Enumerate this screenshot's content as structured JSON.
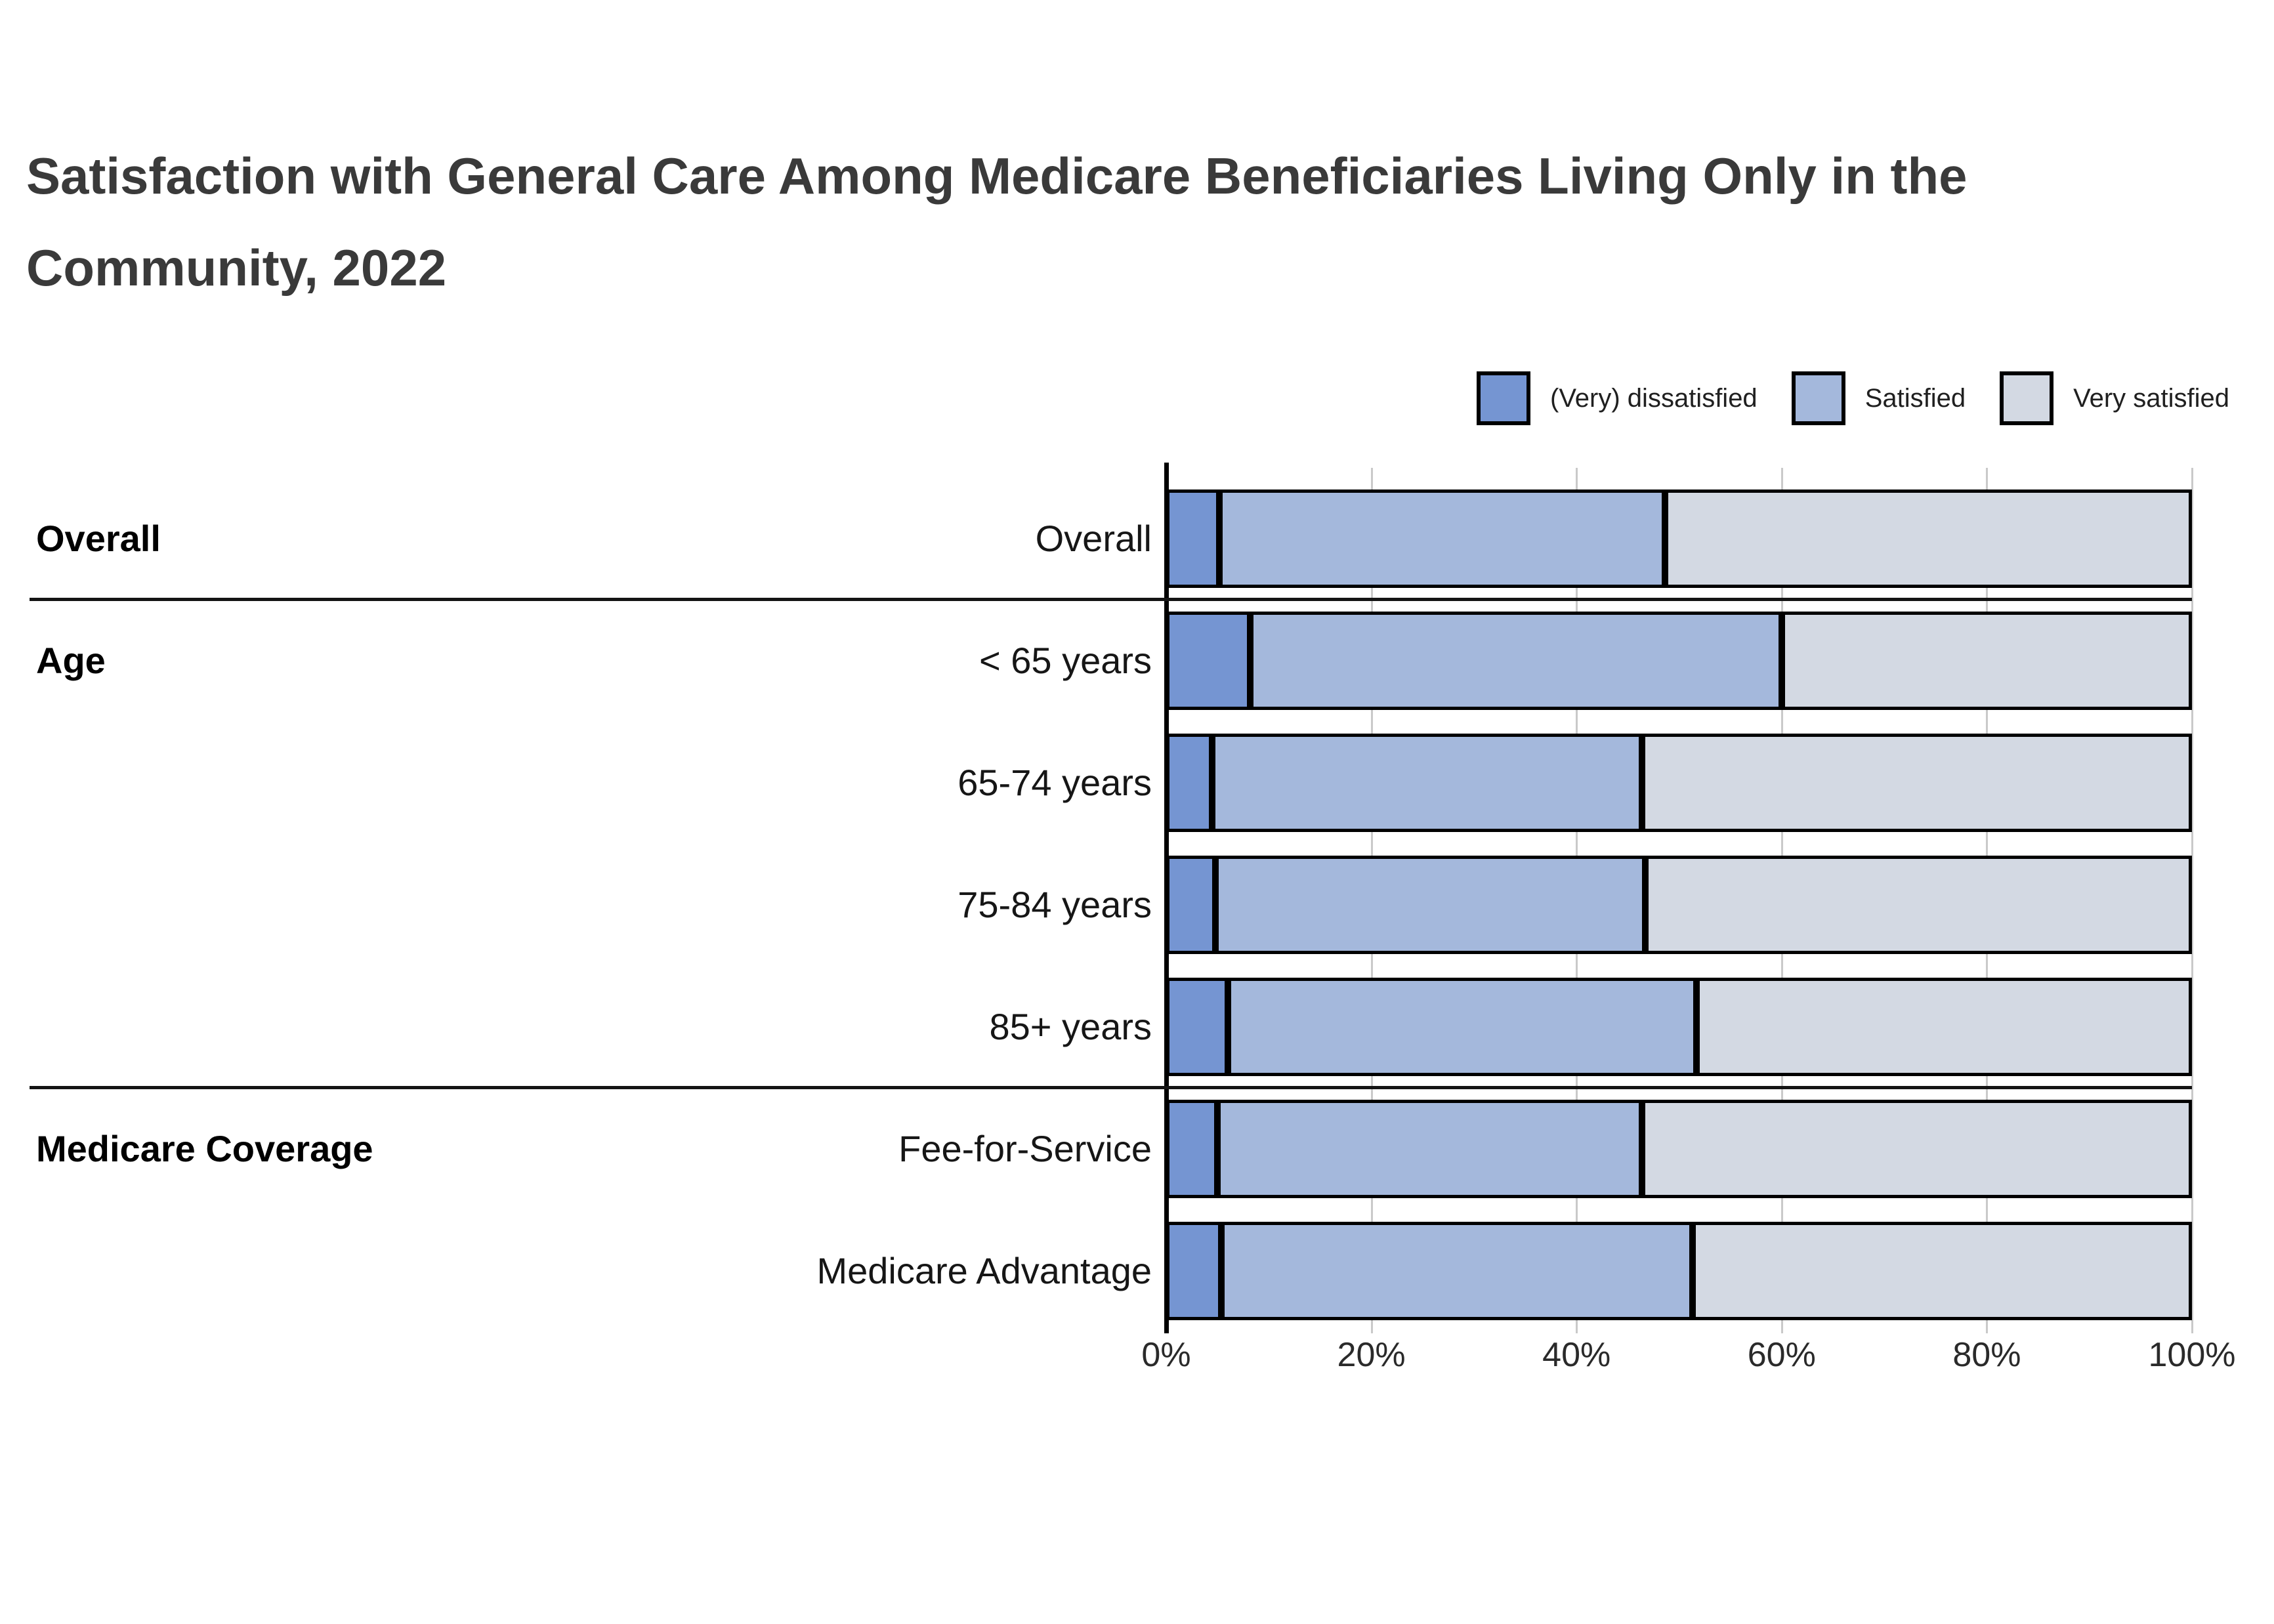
{
  "title": "Satisfaction with General Care Among Medicare Beneficiaries Living Only in the Community, 2022",
  "chart_data": {
    "type": "bar",
    "orientation": "horizontal",
    "stacked": true,
    "title": "Satisfaction with General Care Among Medicare Beneficiaries Living Only in the Community, 2022",
    "series_names": [
      "(Very) dissatisfied",
      "Satisfied",
      "Very satisfied"
    ],
    "colors": [
      "#7595d2",
      "#a4b8dc",
      "#d3d9e3"
    ],
    "grid": true,
    "legend_position": "top-right",
    "x_axis": {
      "range": [
        0,
        100
      ],
      "values": [
        0,
        20,
        40,
        60,
        80,
        100
      ],
      "ticks": [
        "0%",
        "20%",
        "40%",
        "60%",
        "80%",
        "100%"
      ]
    },
    "groups": [
      {
        "label": "Overall",
        "rows": [
          {
            "label": "Overall",
            "values": [
              5.2,
              43.4,
              51.4
            ]
          }
        ]
      },
      {
        "label": "Age",
        "rows": [
          {
            "label": "< 65 years",
            "values": [
              8.2,
              51.8,
              40.0
            ]
          },
          {
            "label": "65-74 years",
            "values": [
              4.5,
              41.9,
              53.6
            ]
          },
          {
            "label": "75-84 years",
            "values": [
              4.8,
              41.9,
              53.3
            ]
          },
          {
            "label": "85+ years",
            "values": [
              6.0,
              45.7,
              48.3
            ]
          }
        ]
      },
      {
        "label": "Medicare Coverage",
        "rows": [
          {
            "label": "Fee-for-Service",
            "values": [
              5.0,
              41.4,
              53.6
            ]
          },
          {
            "label": "Medicare Advantage",
            "values": [
              5.4,
              45.9,
              48.7
            ]
          }
        ]
      }
    ]
  }
}
